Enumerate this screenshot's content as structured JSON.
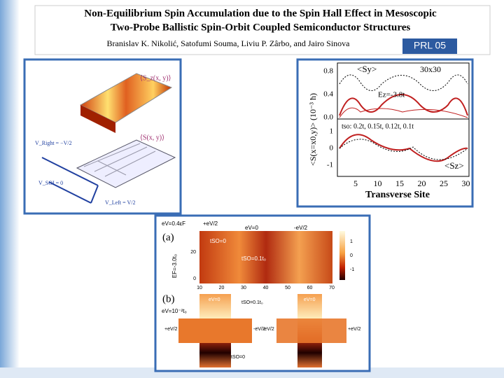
{
  "header": {
    "title_lines": [
      "Non-Equilibrium Spin Accumulation due to the Spin Hall Effect in Mesoscopic",
      "Two-Probe Ballistic Spin-Orbit Coupled Semiconductor Structures"
    ],
    "authors": "Branislav K. Nikolić, Satofumi Souma, Liviu P. Zârbo, and Jairo Sinova",
    "tag": "PRL 05"
  },
  "figure_left": {
    "labels": [
      "⟨S_z(x, y)⟩",
      "⟨S(x, y)⟩",
      "V_Right = −V/2",
      "V_SOI = 0",
      "V_Left = V/2"
    ]
  },
  "figure_right": {
    "y_label": "<S(x=x0,y)> (10⁻³ ħ)",
    "x_label": "Transverse Site",
    "sy_label": "<Sy>",
    "size_label": "30x30",
    "ez_label": "Ez=-3.8t",
    "tso_label": "tso: 0.2t, 0.15t, 0.12t, 0.1t",
    "sz_label": "<Sz>",
    "top_ticks": [
      "0.8",
      "0.4",
      "0.0"
    ],
    "bottom_ticks": [
      "1",
      "0",
      "-1"
    ],
    "x_ticks": [
      "5",
      "10",
      "15",
      "20",
      "25",
      "30"
    ]
  },
  "figure_bottom": {
    "panel_a": "(a)",
    "panel_b": "(b)",
    "bias_a": "eV=0.4εF",
    "bias_b": "eV=10⁻²t₀",
    "ef_label": "EF=-3.0t₀",
    "plus": "+eV/2",
    "zero": "eV=0",
    "minus": "-eV/2",
    "tso_zero": "tSO=0",
    "tso_one": "tSO=0.1t₀",
    "x_ticks": [
      "10",
      "20",
      "30",
      "40",
      "50",
      "60",
      "70"
    ],
    "y_ticks": [
      "20",
      "0"
    ],
    "scale_ticks": [
      "1",
      "0",
      "-1"
    ]
  }
}
